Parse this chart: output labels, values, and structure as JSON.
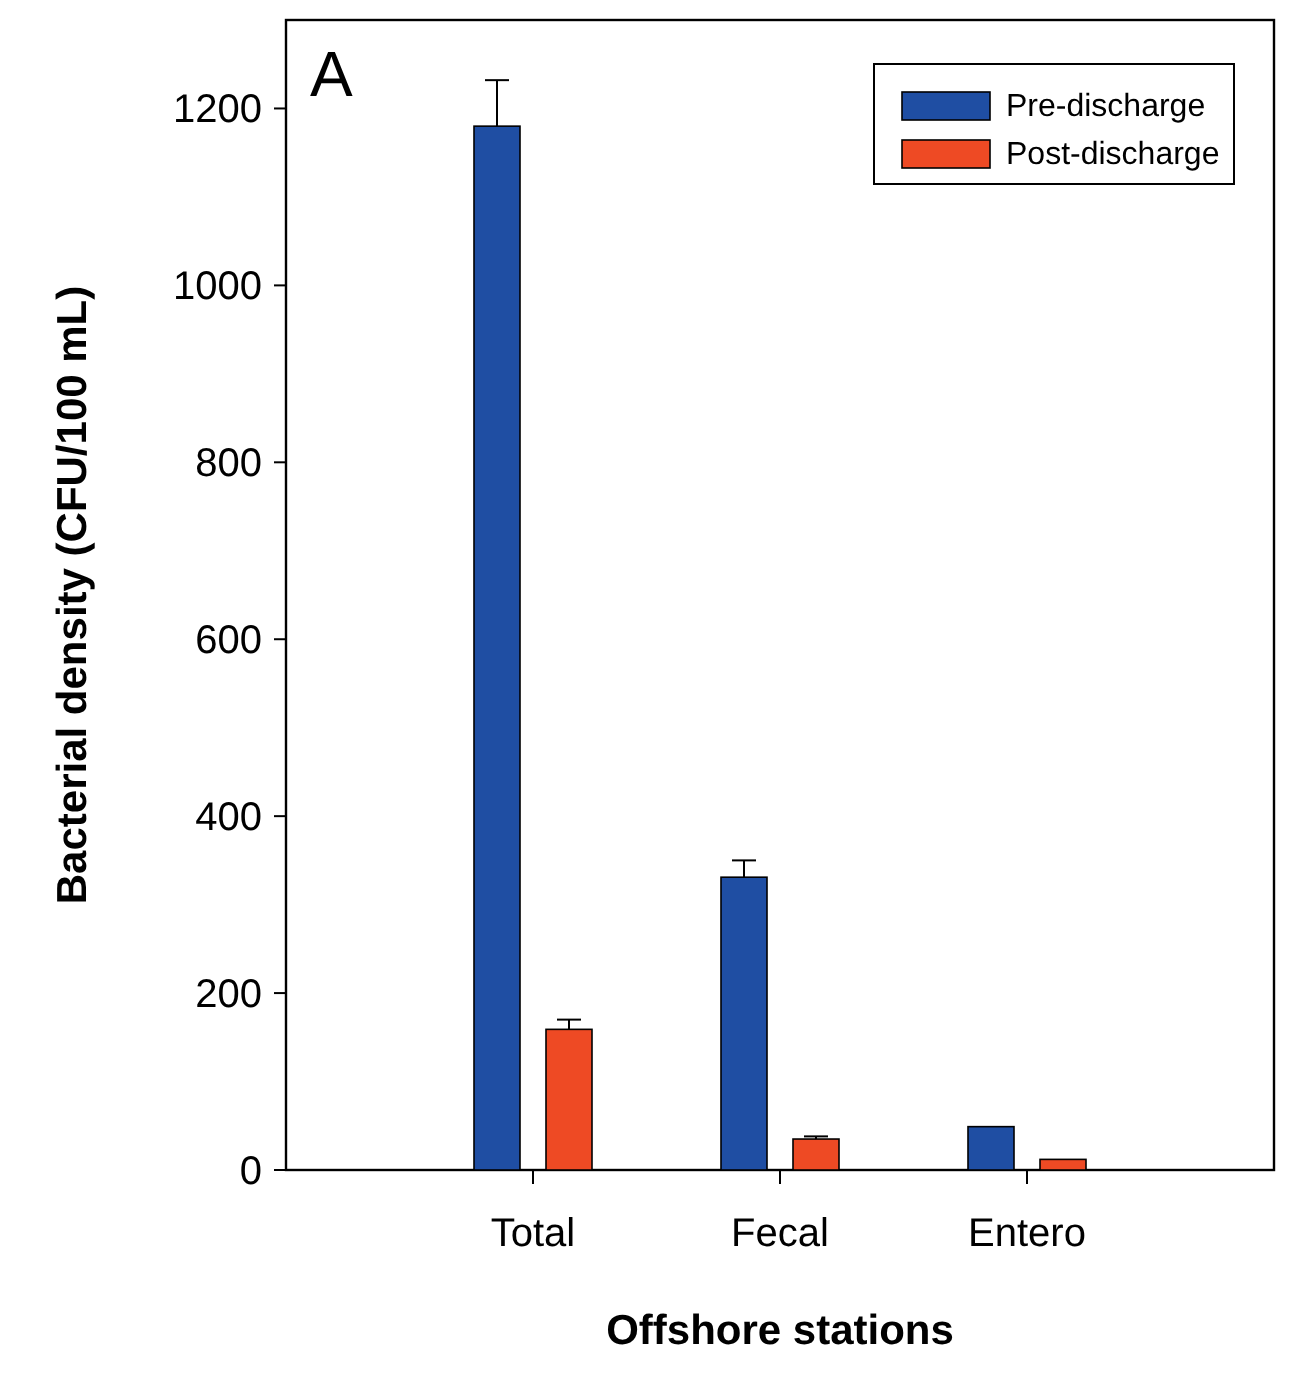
{
  "chart_data": {
    "type": "bar",
    "xlabel": "Offshore stations",
    "ylabel": "Bacterial density (CFU/100 mL)",
    "annotations": [
      "A"
    ],
    "categories": [
      "Total",
      "Fecal",
      "Entero"
    ],
    "series": [
      {
        "name": "Pre-discharge",
        "color": "#1f4ea3",
        "values": [
          1180,
          331,
          49
        ],
        "errors": [
          [
            1180,
            1232
          ],
          [
            331,
            350
          ],
          null
        ]
      },
      {
        "name": "Post-discharge",
        "color": "#ee4a24",
        "values": [
          159,
          35,
          12
        ],
        "errors": [
          [
            159,
            170
          ],
          [
            35,
            38
          ],
          null
        ]
      }
    ],
    "ylim": [
      0,
      1300
    ],
    "yticks": [
      0,
      200,
      400,
      600,
      800,
      1000,
      1200
    ],
    "legend": "top right"
  }
}
